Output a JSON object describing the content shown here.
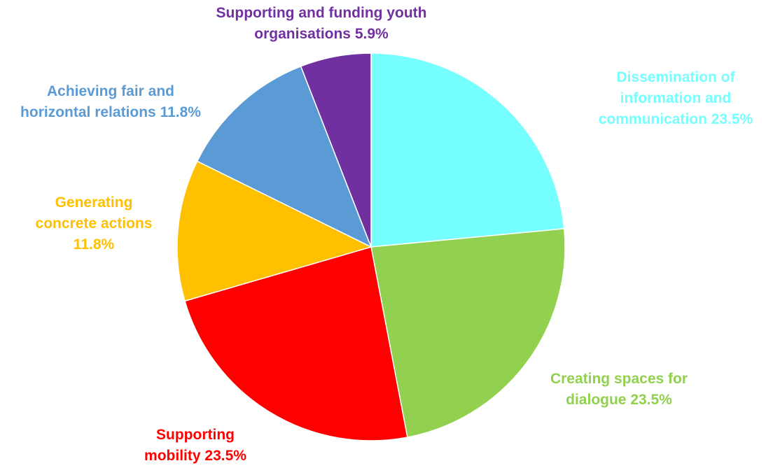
{
  "chart_data": {
    "type": "pie",
    "title": "",
    "start_angle_deg": 0,
    "direction": "clockwise",
    "slices": [
      {
        "name": "Dissemination of information and communication",
        "value": 23.5,
        "color": "#75FFFF",
        "label_lines": [
          "Dissemination of",
          "information and",
          "communication 23.5%"
        ]
      },
      {
        "name": "Creating spaces for dialogue",
        "value": 23.5,
        "color": "#92D050",
        "label_lines": [
          "Creating spaces for",
          "dialogue  23.5%"
        ]
      },
      {
        "name": "Supporting mobility",
        "value": 23.5,
        "color": "#FF0000",
        "label_lines": [
          "Supporting",
          "mobility 23.5%"
        ]
      },
      {
        "name": "Generating concrete actions",
        "value": 11.8,
        "color": "#FFC000",
        "label_lines": [
          "Generating",
          "concrete actions",
          "11.8%"
        ]
      },
      {
        "name": "Achieving fair and horizontal relations",
        "value": 11.8,
        "color": "#5B9BD5",
        "label_lines": [
          "Achieving fair and",
          "horizontal relations 11.8%"
        ]
      },
      {
        "name": "Supporting and funding youth organisations",
        "value": 5.9,
        "color": "#7030A0",
        "label_lines": [
          "Supporting and funding youth",
          "organisations 5.9%"
        ]
      }
    ]
  }
}
